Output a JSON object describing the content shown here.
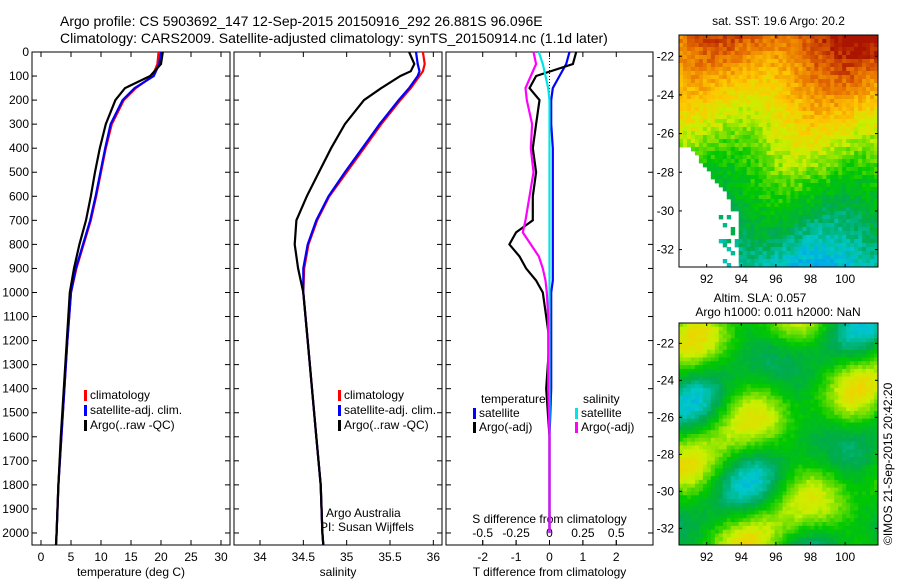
{
  "title_line1": "Argo profile: CS 5903692_147 12-Sep-2015 20150916_292 26.881S 96.096E",
  "title_line2": "Climatology: CARS2009. Satellite-adjusted climatology: synTS_20150914.nc (1.1d later)",
  "credit": "©IMOS 21-Sep-2015 20:42:20",
  "colors": {
    "climatology": "#ff0000",
    "satellite": "#0000ff",
    "argo": "#000000",
    "sat_s": "#00e5e5",
    "argo_s": "#ff00ff"
  },
  "chart_data": [
    {
      "type": "line",
      "name": "temperature",
      "xlabel": "temperature (deg C)",
      "xlim": [
        -1.5,
        31.5
      ],
      "ylim": [
        2050,
        0
      ],
      "xticks": [
        "0",
        "5",
        "10",
        "15",
        "20",
        "25",
        "30"
      ],
      "yticks": [
        "0",
        "100",
        "200",
        "300",
        "400",
        "500",
        "600",
        "700",
        "800",
        "900",
        "1000",
        "1100",
        "1200",
        "1300",
        "1400",
        "1500",
        "1600",
        "1700",
        "1800",
        "1900",
        "2000"
      ],
      "legend": [
        "climatology",
        "satellite-adj. clim.",
        "Argo(..raw -QC)"
      ],
      "depth": [
        0,
        50,
        100,
        150,
        200,
        300,
        400,
        500,
        600,
        700,
        800,
        900,
        1000,
        1200,
        1400,
        1600,
        1800,
        2000,
        2050
      ],
      "series": [
        {
          "name": "climatology",
          "values": [
            19.6,
            19.4,
            18.6,
            15.8,
            13.8,
            11.8,
            10.8,
            10.0,
            9.2,
            8.3,
            7.1,
            5.9,
            5.0,
            4.4,
            3.9,
            3.4,
            2.9,
            2.6,
            2.5
          ]
        },
        {
          "name": "satellite-adj. clim.",
          "values": [
            20.0,
            19.7,
            18.8,
            15.6,
            13.6,
            11.6,
            10.7,
            9.9,
            9.1,
            8.2,
            7.0,
            5.8,
            5.0,
            4.4,
            3.9,
            3.4,
            2.9,
            2.6,
            2.5
          ]
        },
        {
          "name": "Argo(..raw -QC)",
          "values": [
            20.3,
            20.0,
            18.2,
            14.0,
            12.4,
            10.8,
            9.8,
            9.0,
            8.3,
            7.5,
            6.4,
            5.5,
            4.8,
            4.3,
            3.8,
            3.3,
            2.9,
            2.6,
            2.5
          ]
        }
      ]
    },
    {
      "type": "line",
      "name": "salinity",
      "xlabel": "salinity",
      "xlim": [
        33.7,
        36.1
      ],
      "ylim": [
        2050,
        0
      ],
      "xticks": [
        "34",
        "34.5",
        "35",
        "35.5",
        "36"
      ],
      "legend": [
        "climatology",
        "satellite-adj. clim.",
        "Argo(..raw -QC)"
      ],
      "annotations": [
        "Argo Australia",
        "PI: Susan Wijffels"
      ],
      "depth": [
        0,
        50,
        80,
        100,
        150,
        200,
        300,
        400,
        500,
        600,
        700,
        800,
        900,
        1000,
        1200,
        1400,
        1600,
        1800,
        2000,
        2050
      ],
      "series": [
        {
          "name": "climatology",
          "values": [
            35.88,
            35.9,
            35.88,
            35.84,
            35.74,
            35.62,
            35.4,
            35.2,
            35.0,
            34.8,
            34.66,
            34.56,
            34.51,
            34.5,
            34.55,
            34.6,
            34.65,
            34.7,
            34.72,
            34.73
          ]
        },
        {
          "name": "satellite-adj. clim.",
          "values": [
            35.8,
            35.82,
            35.84,
            35.82,
            35.72,
            35.6,
            35.38,
            35.18,
            34.98,
            34.79,
            34.65,
            34.55,
            34.5,
            34.5,
            34.55,
            34.6,
            34.65,
            34.7,
            34.72,
            34.73
          ]
        },
        {
          "name": "Argo(..raw -QC)",
          "values": [
            35.72,
            35.78,
            35.74,
            35.62,
            35.4,
            35.2,
            34.98,
            34.82,
            34.68,
            34.54,
            34.42,
            34.4,
            34.44,
            34.5,
            34.55,
            34.6,
            34.65,
            34.7,
            34.72,
            34.73
          ]
        }
      ]
    },
    {
      "type": "line",
      "name": "difference",
      "xlabel": "T difference from climatology",
      "xlabel2": "S difference from climatology",
      "xlim": [
        -3.1,
        3.1
      ],
      "ylim": [
        2050,
        0
      ],
      "xticks": [
        "-2",
        "-1",
        "0",
        "1",
        "2"
      ],
      "xticks2": [
        "-0.5",
        "-0.25",
        "0",
        "0.25",
        "0.5"
      ],
      "legend_titles": [
        "temperature",
        "salinity"
      ],
      "legend": [
        "satellite",
        "Argo(-adj)",
        "satellite",
        "Argo(-adj)"
      ],
      "depth": [
        0,
        50,
        100,
        150,
        200,
        300,
        400,
        500,
        600,
        700,
        750,
        800,
        850,
        900,
        950,
        1000,
        1100,
        1200,
        1400,
        1600,
        1800,
        2000
      ],
      "series": [
        {
          "name": "T satellite",
          "axis": "T",
          "values": [
            0.6,
            0.5,
            0.3,
            0.1,
            0.05,
            0.05,
            0.1,
            0.1,
            0.1,
            0.1,
            0.1,
            0.1,
            0.1,
            0.1,
            0.1,
            0.05,
            0.05,
            0.05,
            0.05,
            0.0,
            0.0,
            0.0
          ]
        },
        {
          "name": "T Argo(-adj)",
          "axis": "T",
          "values": [
            0.8,
            0.7,
            -0.4,
            -0.6,
            -0.3,
            -0.4,
            -0.5,
            -0.4,
            -0.5,
            -0.5,
            -1.0,
            -1.2,
            -0.9,
            -0.7,
            -0.4,
            -0.2,
            -0.1,
            0.0,
            -0.1,
            0.0,
            0.0,
            0.0
          ]
        },
        {
          "name": "S satellite",
          "axis": "S",
          "values": [
            -0.08,
            -0.05,
            -0.03,
            -0.01,
            0.0,
            0.0,
            0.0,
            0.0,
            0.0,
            0.0,
            0.0,
            0.0,
            0.0,
            0.0,
            0.0,
            0.0,
            0.0,
            0.0,
            0.0,
            0.0,
            0.0,
            0.0
          ]
        },
        {
          "name": "S Argo(-adj)",
          "axis": "S",
          "values": [
            -0.12,
            -0.1,
            -0.14,
            -0.18,
            -0.17,
            -0.13,
            -0.14,
            -0.12,
            -0.15,
            -0.18,
            -0.2,
            -0.14,
            -0.08,
            -0.05,
            -0.03,
            -0.02,
            -0.01,
            -0.01,
            -0.01,
            0.0,
            0.0,
            0.0
          ]
        }
      ]
    },
    {
      "type": "heatmap",
      "name": "sst-map",
      "title": "sat. SST: 19.6 Argo: 20.2",
      "xticks": [
        "92",
        "94",
        "96",
        "98",
        "100"
      ],
      "yticks": [
        "-22",
        "-24",
        "-26",
        "-28",
        "-30",
        "-32"
      ],
      "xlim": [
        90.4,
        101.9
      ],
      "ylim": [
        -32.9,
        -20.9
      ]
    },
    {
      "type": "heatmap",
      "name": "sla-map",
      "title": "Altim. SLA: 0.057",
      "subtitle": "Argo h1000: 0.011 h2000: NaN",
      "xticks": [
        "92",
        "94",
        "96",
        "98",
        "100"
      ],
      "yticks": [
        "-22",
        "-24",
        "-26",
        "-28",
        "-30",
        "-32"
      ],
      "xlim": [
        90.4,
        101.9
      ],
      "ylim": [
        -32.9,
        -20.9
      ]
    }
  ]
}
